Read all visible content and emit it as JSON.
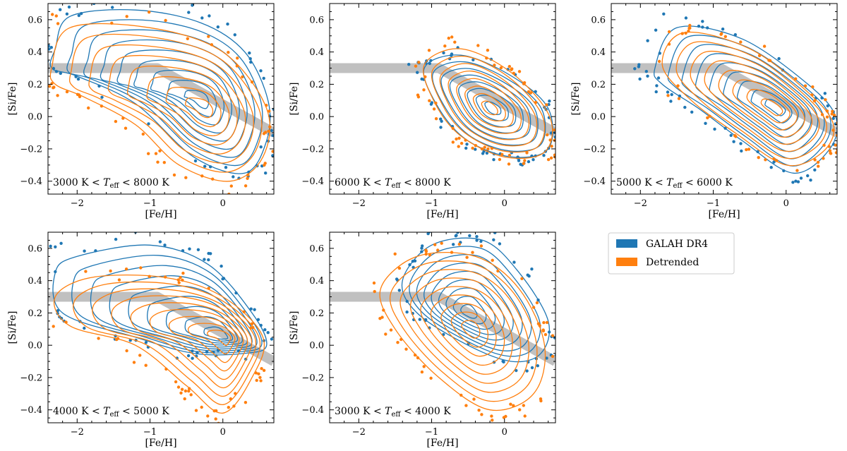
{
  "colors": {
    "galah": "#1f77b4",
    "detrended": "#ff7f0e",
    "trend_band": "#c0c0c0"
  },
  "legend": [
    {
      "label": "GALAH DR4",
      "color": "#1f77b4"
    },
    {
      "label": "Detrended",
      "color": "#ff7f0e"
    }
  ],
  "chart_data": [
    {
      "type": "scatter",
      "panel": "3000 K < Teff < 8000 K",
      "label": {
        "prefix": "3000 K < ",
        "sym": "T",
        "sub": "eff",
        "suffix": " < 8000 K"
      },
      "xlabel": "[Fe/H]",
      "ylabel": "[Si/Fe]",
      "xlim": [
        -2.4,
        0.7
      ],
      "ylim": [
        -0.48,
        0.7
      ],
      "xticks": [
        -2,
        -1,
        0
      ],
      "yticks": [
        -0.4,
        -0.2,
        0.0,
        0.2,
        0.4,
        0.6
      ],
      "trend_band": [
        [
          -2.4,
          0.3
        ],
        [
          -0.9,
          0.3
        ],
        [
          0.7,
          -0.1
        ]
      ],
      "series": [
        {
          "name": "GALAH DR4",
          "centroid": [
            -0.3,
            0.1
          ],
          "rings": 9,
          "outer_contour": [
            [
              -2.3,
              0.42
            ],
            [
              -2.1,
              0.62
            ],
            [
              -1.2,
              0.66
            ],
            [
              -0.3,
              0.58
            ],
            [
              0.3,
              0.4
            ],
            [
              0.62,
              0.1
            ],
            [
              0.6,
              -0.15
            ],
            [
              0.3,
              -0.35
            ],
            [
              -0.4,
              -0.25
            ],
            [
              -1.2,
              0.08
            ],
            [
              -2.0,
              0.25
            ],
            [
              -2.35,
              0.3
            ]
          ]
        },
        {
          "name": "Detrended",
          "centroid": [
            -0.25,
            0.05
          ],
          "rings": 8,
          "outer_contour": [
            [
              -2.35,
              0.3
            ],
            [
              -2.1,
              0.55
            ],
            [
              -1.0,
              0.55
            ],
            [
              0.0,
              0.4
            ],
            [
              0.6,
              0.05
            ],
            [
              0.55,
              -0.25
            ],
            [
              0.1,
              -0.4
            ],
            [
              -0.6,
              -0.3
            ],
            [
              -1.2,
              -0.05
            ],
            [
              -1.9,
              0.12
            ],
            [
              -2.3,
              0.2
            ]
          ]
        }
      ]
    },
    {
      "type": "scatter",
      "panel": "6000 K < Teff < 8000 K",
      "label": {
        "prefix": "6000 K < ",
        "sym": "T",
        "sub": "eff",
        "suffix": " < 8000 K"
      },
      "xlabel": "[Fe/H]",
      "ylabel": "[Si/Fe]",
      "xlim": [
        -2.4,
        0.7
      ],
      "ylim": [
        -0.48,
        0.7
      ],
      "xticks": [
        -2,
        -1,
        0
      ],
      "yticks": [
        -0.4,
        -0.2,
        0.0,
        0.2,
        0.4,
        0.6
      ],
      "trend_band": [
        [
          -2.4,
          0.3
        ],
        [
          -0.9,
          0.3
        ],
        [
          0.7,
          -0.1
        ]
      ],
      "series": [
        {
          "name": "GALAH DR4",
          "centroid": [
            -0.15,
            0.05
          ],
          "rings": 8,
          "outer_contour": [
            [
              -1.1,
              0.3
            ],
            [
              -0.6,
              0.38
            ],
            [
              0.1,
              0.25
            ],
            [
              0.6,
              0.05
            ],
            [
              0.6,
              -0.2
            ],
            [
              0.1,
              -0.25
            ],
            [
              -0.5,
              -0.15
            ],
            [
              -0.9,
              0.05
            ]
          ]
        },
        {
          "name": "Detrended",
          "centroid": [
            -0.2,
            0.05
          ],
          "rings": 8,
          "outer_contour": [
            [
              -1.1,
              0.32
            ],
            [
              -0.6,
              0.42
            ],
            [
              0.1,
              0.27
            ],
            [
              0.62,
              0.0
            ],
            [
              0.55,
              -0.22
            ],
            [
              0.0,
              -0.25
            ],
            [
              -0.6,
              -0.12
            ],
            [
              -0.95,
              0.08
            ]
          ]
        }
      ]
    },
    {
      "type": "scatter",
      "panel": "5000 K < Teff < 6000 K",
      "label": {
        "prefix": "5000 K < ",
        "sym": "T",
        "sub": "eff",
        "suffix": " < 6000 K"
      },
      "xlabel": "[Fe/H]",
      "ylabel": "[Si/Fe]",
      "xlim": [
        -2.4,
        0.7
      ],
      "ylim": [
        -0.48,
        0.7
      ],
      "xticks": [
        -2,
        -1,
        0
      ],
      "yticks": [
        -0.4,
        -0.2,
        0.0,
        0.2,
        0.4,
        0.6
      ],
      "trend_band": [
        [
          -2.4,
          0.3
        ],
        [
          -0.9,
          0.3
        ],
        [
          0.7,
          -0.1
        ]
      ],
      "series": [
        {
          "name": "GALAH DR4",
          "centroid": [
            -0.1,
            0.05
          ],
          "rings": 9,
          "outer_contour": [
            [
              -1.8,
              0.3
            ],
            [
              -1.5,
              0.55
            ],
            [
              -0.6,
              0.48
            ],
            [
              0.3,
              0.2
            ],
            [
              0.68,
              0.0
            ],
            [
              0.6,
              -0.2
            ],
            [
              0.1,
              -0.35
            ],
            [
              -0.6,
              -0.15
            ],
            [
              -1.2,
              0.05
            ],
            [
              -1.7,
              0.2
            ]
          ]
        },
        {
          "name": "Detrended",
          "centroid": [
            -0.15,
            0.05
          ],
          "rings": 8,
          "outer_contour": [
            [
              -1.7,
              0.32
            ],
            [
              -1.4,
              0.52
            ],
            [
              -0.5,
              0.42
            ],
            [
              0.3,
              0.15
            ],
            [
              0.65,
              -0.05
            ],
            [
              0.5,
              -0.22
            ],
            [
              0.0,
              -0.3
            ],
            [
              -0.7,
              -0.1
            ],
            [
              -1.3,
              0.1
            ]
          ]
        }
      ]
    },
    {
      "type": "scatter",
      "panel": "4000 K < Teff < 5000 K",
      "label": {
        "prefix": "4000 K < ",
        "sym": "T",
        "sub": "eff",
        "suffix": " < 5000 K"
      },
      "xlabel": "[Fe/H]",
      "ylabel": "[Si/Fe]",
      "xlim": [
        -2.4,
        0.7
      ],
      "ylim": [
        -0.48,
        0.7
      ],
      "xticks": [
        -2,
        -1,
        0
      ],
      "yticks": [
        -0.4,
        -0.2,
        0.0,
        0.2,
        0.4,
        0.6
      ],
      "trend_band": [
        [
          -2.4,
          0.3
        ],
        [
          -0.9,
          0.3
        ],
        [
          0.7,
          -0.1
        ]
      ],
      "series": [
        {
          "name": "GALAH DR4",
          "centroid": [
            0.0,
            0.05
          ],
          "rings": 9,
          "outer_contour": [
            [
              -2.3,
              0.45
            ],
            [
              -2.0,
              0.55
            ],
            [
              -1.0,
              0.62
            ],
            [
              -0.2,
              0.5
            ],
            [
              0.4,
              0.2
            ],
            [
              0.6,
              0.0
            ],
            [
              0.3,
              -0.05
            ],
            [
              -0.4,
              -0.05
            ],
            [
              -1.2,
              0.05
            ],
            [
              -2.2,
              0.2
            ]
          ]
        },
        {
          "name": "Detrended",
          "centroid": [
            0.05,
            0.05
          ],
          "rings": 9,
          "outer_contour": [
            [
              -2.3,
              0.3
            ],
            [
              -1.8,
              0.42
            ],
            [
              -0.8,
              0.42
            ],
            [
              0.0,
              0.3
            ],
            [
              0.55,
              0.05
            ],
            [
              0.4,
              -0.2
            ],
            [
              0.0,
              -0.42
            ],
            [
              -0.5,
              -0.25
            ],
            [
              -1.2,
              0.0
            ],
            [
              -2.1,
              0.12
            ]
          ]
        }
      ]
    },
    {
      "type": "scatter",
      "panel": "3000 K < Teff < 4000 K",
      "label": {
        "prefix": "3000 K < ",
        "sym": "T",
        "sub": "eff",
        "suffix": " < 4000 K"
      },
      "xlabel": "[Fe/H]",
      "ylabel": "[Si/Fe]",
      "xlim": [
        -2.4,
        0.7
      ],
      "ylim": [
        -0.48,
        0.7
      ],
      "xticks": [
        -2,
        -1,
        0
      ],
      "yticks": [
        -0.4,
        -0.2,
        0.0,
        0.2,
        0.4,
        0.6
      ],
      "trend_band": [
        [
          -2.4,
          0.3
        ],
        [
          -0.9,
          0.3
        ],
        [
          0.7,
          -0.1
        ]
      ],
      "series": [
        {
          "name": "GALAH DR4",
          "centroid": [
            -0.5,
            0.2
          ],
          "rings": 9,
          "outer_contour": [
            [
              -1.4,
              0.4
            ],
            [
              -1.0,
              0.62
            ],
            [
              -0.3,
              0.65
            ],
            [
              0.2,
              0.45
            ],
            [
              0.6,
              0.15
            ],
            [
              0.5,
              -0.05
            ],
            [
              0.1,
              -0.1
            ],
            [
              -0.5,
              0.0
            ],
            [
              -1.2,
              0.2
            ]
          ]
        },
        {
          "name": "Detrended",
          "centroid": [
            -0.45,
            0.1
          ],
          "rings": 9,
          "outer_contour": [
            [
              -1.7,
              0.35
            ],
            [
              -1.2,
              0.55
            ],
            [
              -0.4,
              0.55
            ],
            [
              0.2,
              0.35
            ],
            [
              0.55,
              0.0
            ],
            [
              0.4,
              -0.3
            ],
            [
              -0.2,
              -0.4
            ],
            [
              -0.9,
              -0.2
            ],
            [
              -1.5,
              0.1
            ]
          ]
        }
      ]
    }
  ]
}
